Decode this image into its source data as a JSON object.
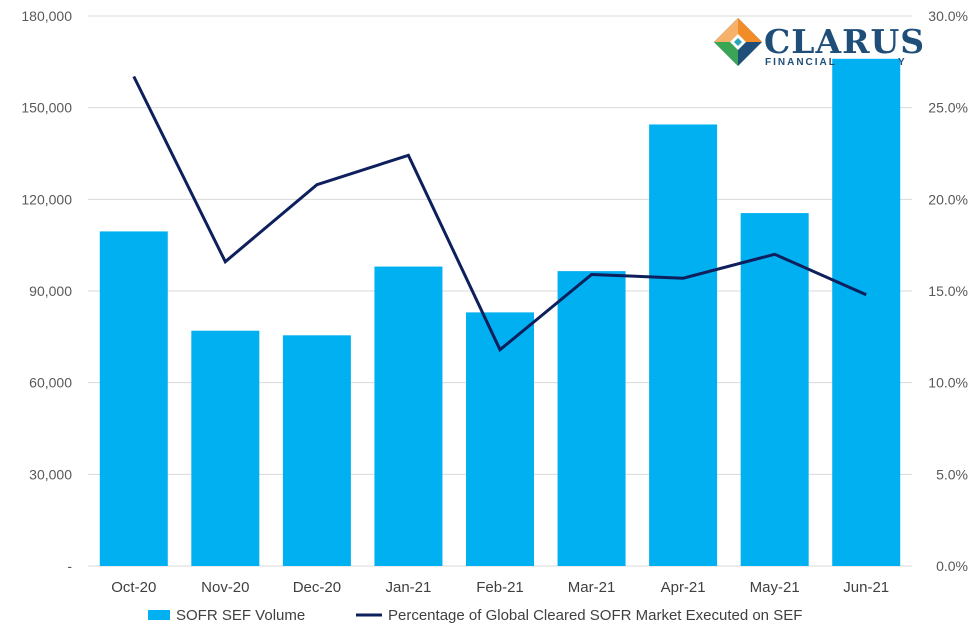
{
  "logo": {
    "word": "CLARUS",
    "sub": "FINANCIAL",
    "sub_tail": "Y",
    "colors": {
      "navy": "#1f4e79",
      "orange": "#f28c28",
      "green": "#3aa655",
      "teal": "#2aa6b8"
    }
  },
  "chart_data": {
    "type": "bar",
    "categories": [
      "Oct-20",
      "Nov-20",
      "Dec-20",
      "Jan-21",
      "Feb-21",
      "Mar-21",
      "Apr-21",
      "May-21",
      "Jun-21"
    ],
    "series": [
      {
        "name": "SOFR SEF Volume",
        "type": "bar",
        "axis": "left",
        "color": "#00b0f0",
        "values": [
          109500,
          77000,
          75500,
          98000,
          83000,
          96500,
          144500,
          115500,
          166000
        ]
      },
      {
        "name": "Percentage of Global Cleared SOFR Market Executed on SEF",
        "type": "line",
        "axis": "right",
        "color": "#0d1f5c",
        "values": [
          26.7,
          16.6,
          20.8,
          22.4,
          11.8,
          15.9,
          15.7,
          17.0,
          14.8
        ]
      }
    ],
    "y_left": {
      "min": 0,
      "max": 180000,
      "ticks": [
        "-",
        "30,000",
        "60,000",
        "90,000",
        "120,000",
        "150,000",
        "180,000"
      ]
    },
    "y_right": {
      "min": 0,
      "max": 30,
      "ticks": [
        "0.0%",
        "5.0%",
        "10.0%",
        "15.0%",
        "20.0%",
        "25.0%",
        "30.0%"
      ]
    },
    "grid": true,
    "legend_position": "bottom"
  }
}
